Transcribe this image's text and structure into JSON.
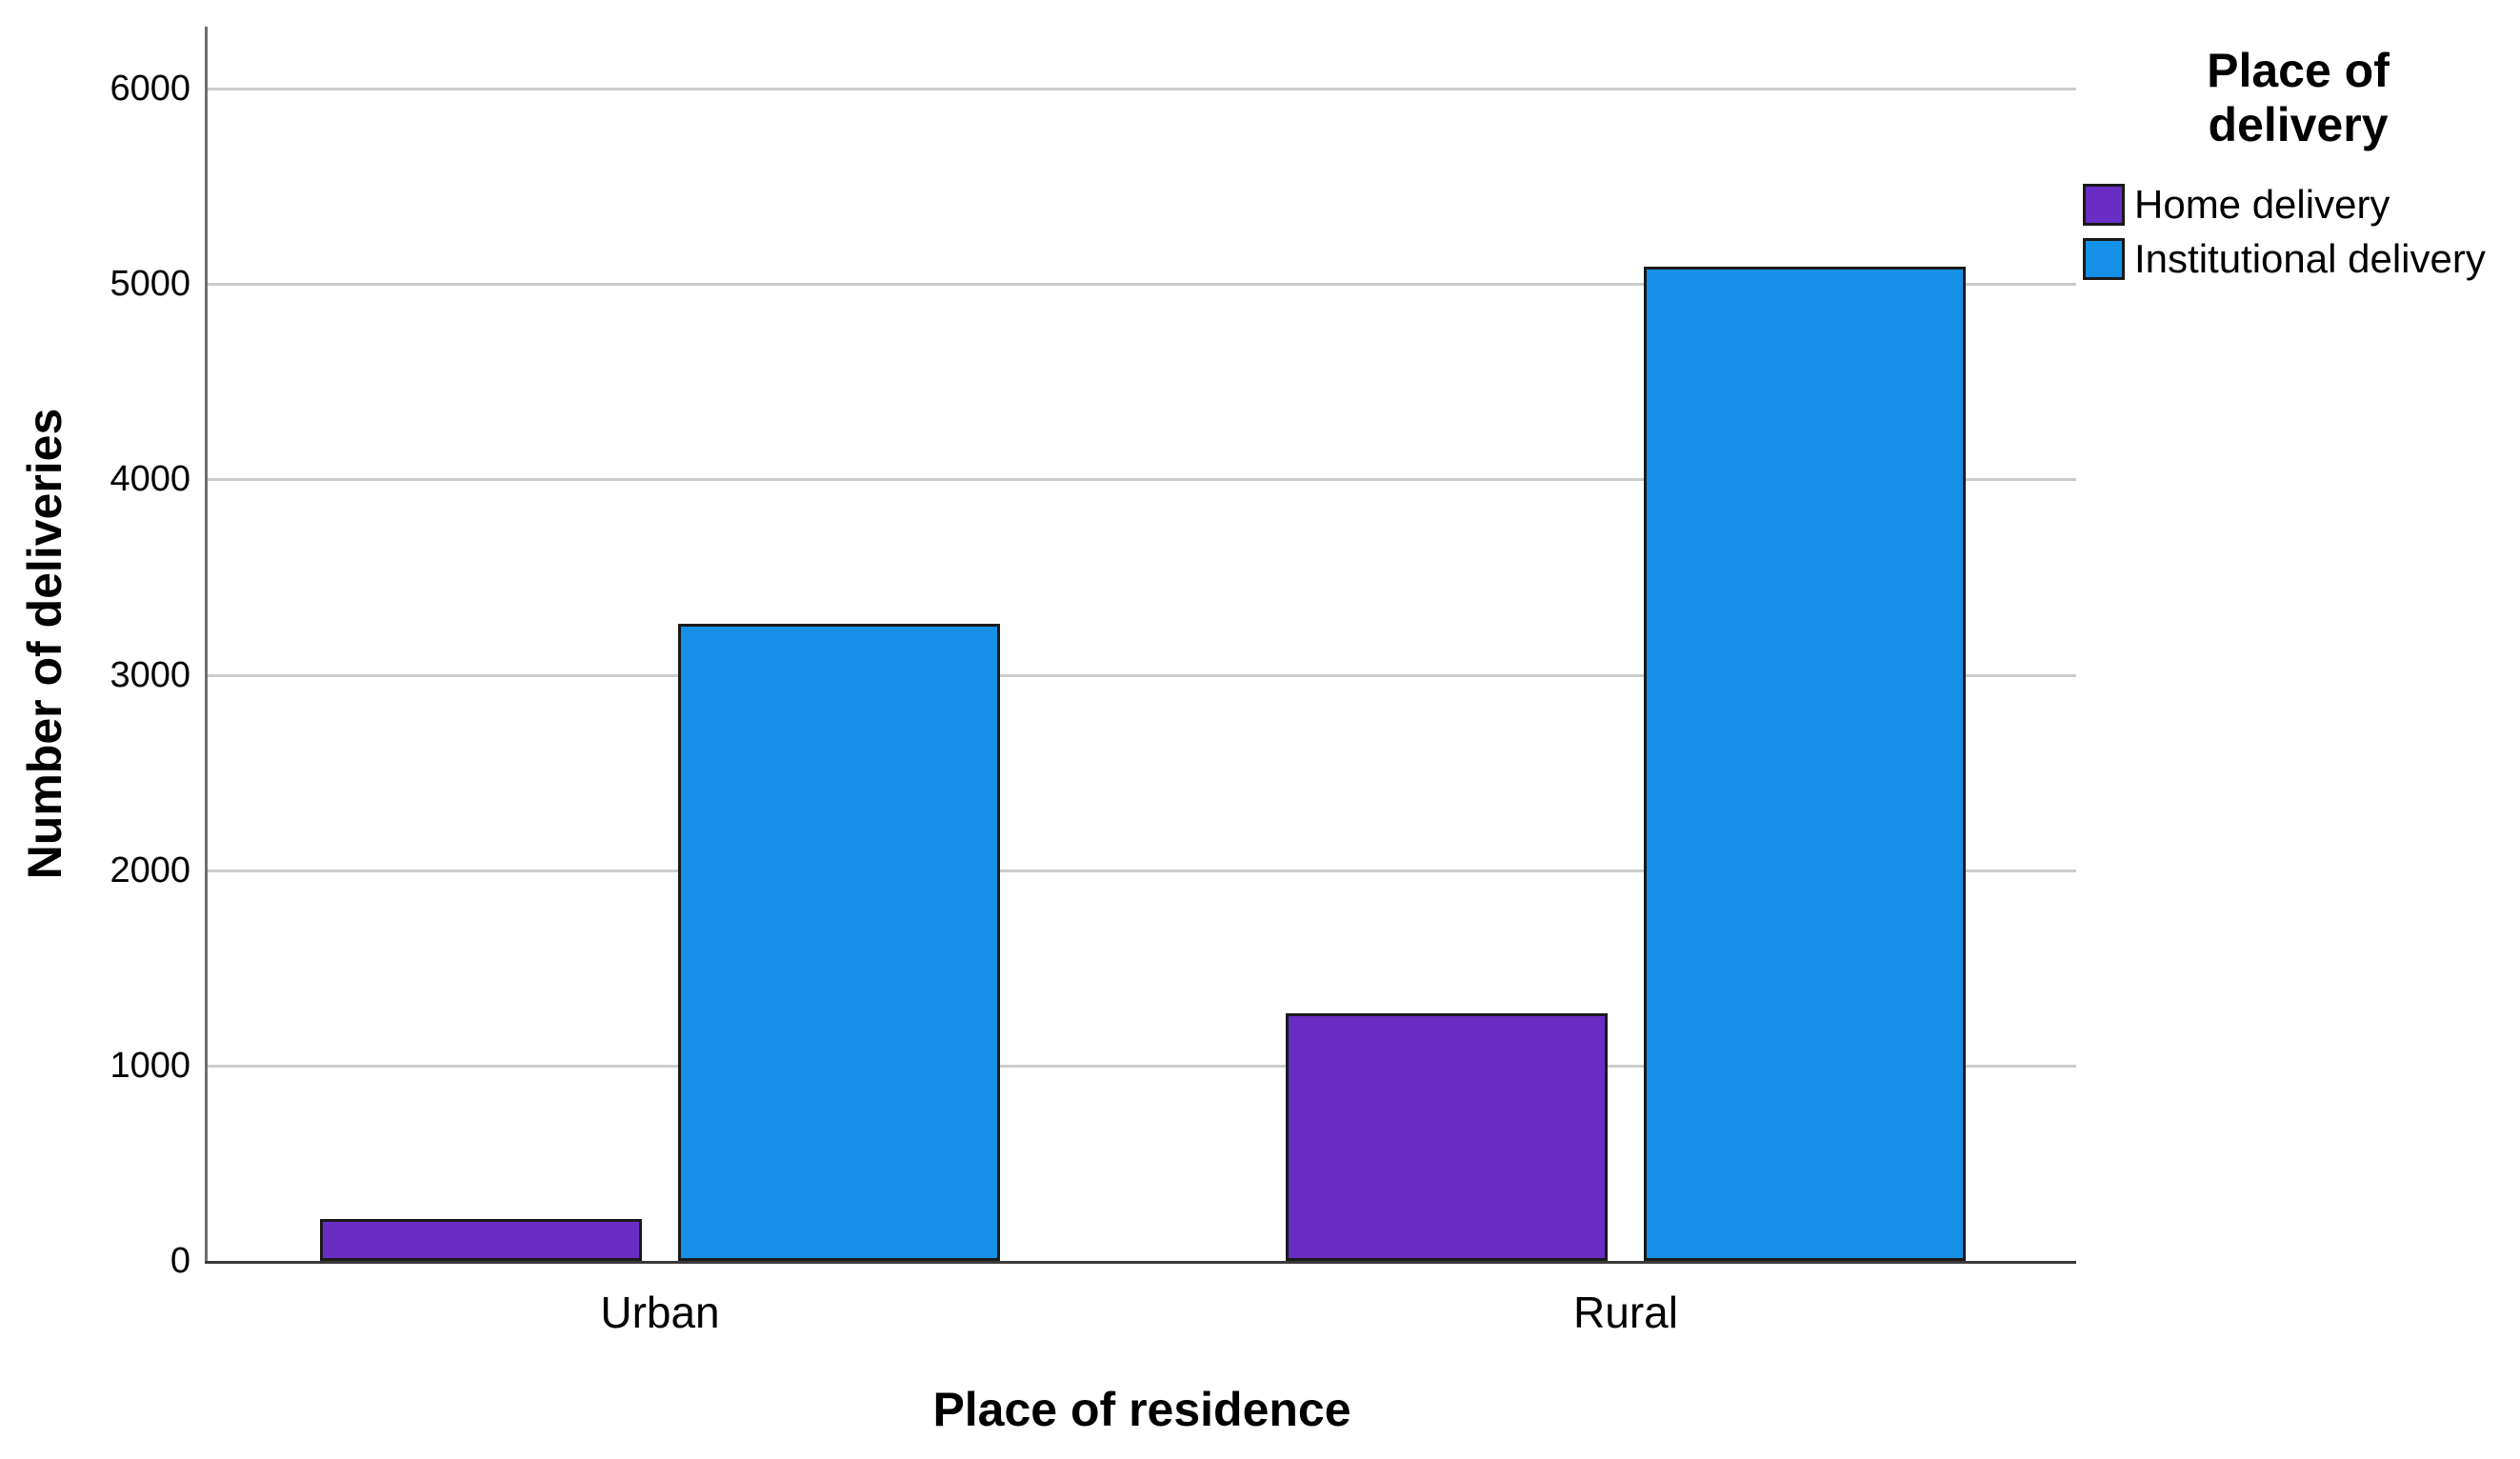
{
  "chart_data": {
    "type": "bar",
    "title": "",
    "xlabel": "Place of residence",
    "ylabel": "Number of deliveries",
    "legend_title": "Place of delivery",
    "legend_position": "top-right-outside",
    "categories": [
      "Urban",
      "Rural"
    ],
    "series": [
      {
        "name": "Home delivery",
        "color": "#692DC3",
        "values": [
          215,
          1265
        ]
      },
      {
        "name": "Institutional delivery",
        "color": "#1491E6",
        "values": [
          3260,
          5090
        ]
      }
    ],
    "yticks": [
      0,
      1000,
      2000,
      3000,
      4000,
      5000,
      6000
    ],
    "ylim": [
      0,
      6300
    ],
    "grid": "horizontal",
    "colors": {
      "background": "#ffffff",
      "bar_border": "#1a1a1a",
      "gridline": "#cccccc",
      "y_axis_line": "#6e6e6e",
      "x_axis_line": "#3a3a3a",
      "text": "#000000"
    }
  }
}
